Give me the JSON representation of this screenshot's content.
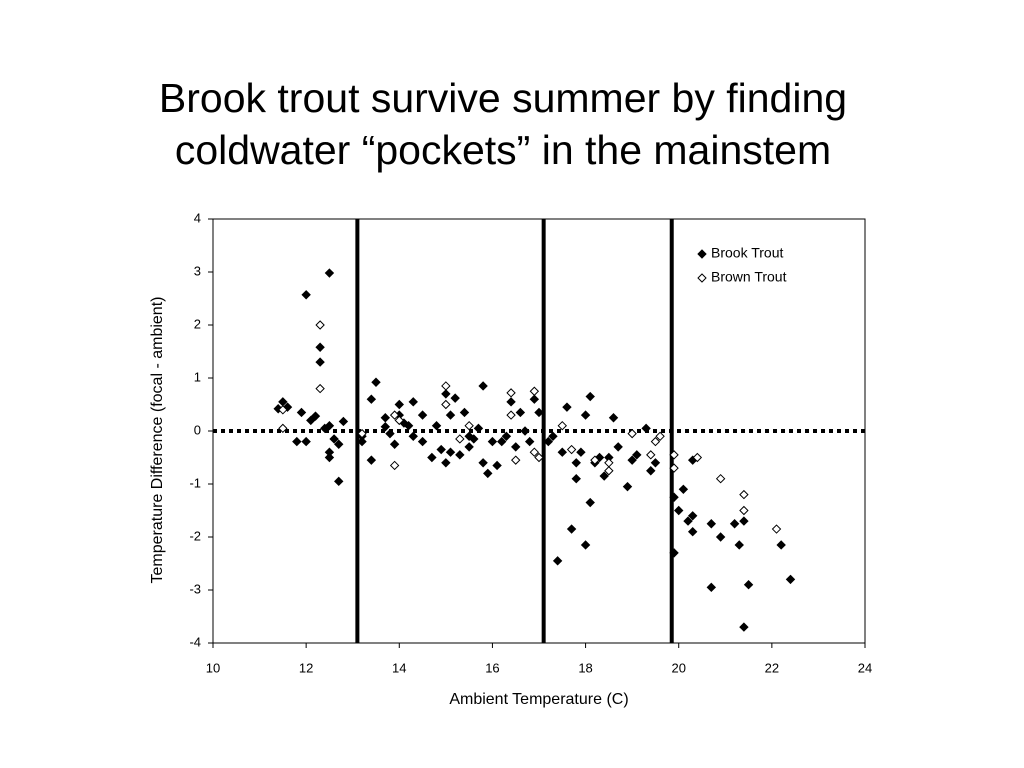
{
  "chart_data": {
    "type": "scatter",
    "title": [
      "Brook trout survive summer by finding",
      "coldwater “pockets” in the mainstem"
    ],
    "x_label": "Ambient Temperature (C)",
    "y_label": "Temperature Difference (focal - ambient)",
    "xlim": [
      10,
      24
    ],
    "xticks": [
      10,
      12,
      14,
      16,
      18,
      20,
      22,
      24
    ],
    "ylim": [
      -4,
      4
    ],
    "yticks": [
      -4,
      -3,
      -2,
      -1,
      0,
      1,
      2,
      3,
      4
    ],
    "vlines": [
      13.1,
      17.1,
      19.85
    ],
    "hline": 0,
    "legend": "upper right",
    "series": [
      {
        "name": "Brook Trout",
        "color": "#000000",
        "filled": true,
        "x": [
          11.4,
          11.5,
          11.6,
          11.8,
          11.9,
          12.0,
          12.0,
          12.1,
          12.2,
          12.3,
          12.3,
          12.4,
          12.5,
          12.5,
          12.5,
          12.5,
          12.6,
          12.7,
          12.7,
          12.8,
          13.2,
          13.2,
          13.4,
          13.4,
          13.5,
          13.7,
          13.7,
          13.8,
          13.9,
          14.0,
          14.0,
          14.1,
          14.2,
          14.3,
          14.3,
          14.5,
          14.5,
          14.7,
          14.8,
          14.9,
          15.0,
          15.0,
          15.1,
          15.1,
          15.2,
          15.3,
          15.4,
          15.5,
          15.5,
          15.6,
          15.7,
          15.8,
          15.8,
          15.9,
          16.0,
          16.1,
          16.2,
          16.3,
          16.4,
          16.5,
          16.6,
          16.7,
          16.8,
          16.9,
          17.0,
          17.2,
          17.3,
          17.4,
          17.5,
          17.6,
          17.7,
          17.8,
          17.8,
          17.9,
          18.0,
          18.0,
          18.1,
          18.1,
          18.2,
          18.3,
          18.4,
          18.5,
          18.6,
          18.7,
          18.9,
          19.0,
          19.1,
          19.3,
          19.4,
          19.5,
          19.9,
          19.9,
          20.0,
          20.1,
          20.2,
          20.3,
          20.3,
          20.3,
          20.7,
          20.7,
          20.9,
          21.2,
          21.3,
          21.4,
          21.4,
          21.5,
          22.2,
          22.4
        ],
        "values": [
          0.42,
          0.55,
          0.45,
          -0.2,
          0.35,
          2.57,
          -0.2,
          0.2,
          0.28,
          1.3,
          1.58,
          0.05,
          2.98,
          -0.4,
          -0.5,
          0.1,
          -0.15,
          -0.95,
          -0.25,
          0.18,
          -0.1,
          -0.2,
          0.6,
          -0.55,
          0.92,
          0.25,
          0.08,
          -0.05,
          -0.25,
          0.5,
          0.3,
          0.15,
          0.1,
          -0.1,
          0.55,
          0.3,
          -0.2,
          -0.5,
          0.1,
          -0.35,
          0.7,
          -0.6,
          -0.4,
          0.3,
          0.62,
          -0.45,
          0.35,
          -0.1,
          -0.3,
          -0.15,
          0.05,
          0.85,
          -0.6,
          -0.8,
          -0.2,
          -0.65,
          -0.2,
          -0.1,
          0.55,
          -0.3,
          0.35,
          0.0,
          -0.2,
          0.6,
          0.35,
          -0.2,
          -0.1,
          -2.45,
          -0.4,
          0.45,
          -1.85,
          -0.9,
          -0.6,
          -0.4,
          -2.15,
          0.3,
          -1.35,
          0.65,
          -0.6,
          -0.5,
          -0.85,
          -0.5,
          0.25,
          -0.3,
          -1.05,
          -0.55,
          -0.45,
          0.05,
          -0.75,
          -0.6,
          -1.25,
          -2.3,
          -1.5,
          -1.1,
          -1.7,
          -1.6,
          -1.9,
          -0.55,
          -1.75,
          -2.95,
          -2.0,
          -1.75,
          -2.15,
          -1.7,
          -3.7,
          -2.9,
          -2.15,
          -2.8
        ]
      },
      {
        "name": "Brown Trout",
        "color": "#000000",
        "filled": false,
        "x": [
          11.5,
          11.5,
          12.3,
          12.3,
          13.2,
          13.9,
          13.9,
          14.0,
          15.0,
          15.0,
          15.3,
          15.5,
          16.4,
          16.4,
          16.5,
          16.9,
          16.9,
          17.0,
          17.5,
          17.7,
          18.2,
          18.5,
          18.5,
          19.0,
          19.4,
          19.5,
          19.6,
          19.9,
          19.9,
          20.4,
          20.9,
          21.4,
          21.4,
          22.1
        ],
        "values": [
          0.4,
          0.05,
          2.0,
          0.8,
          -0.05,
          -0.65,
          0.3,
          0.2,
          0.85,
          0.5,
          -0.15,
          0.1,
          0.72,
          0.3,
          -0.55,
          0.75,
          -0.4,
          -0.5,
          0.1,
          -0.35,
          -0.55,
          -0.6,
          -0.75,
          -0.05,
          -0.45,
          -0.2,
          -0.1,
          -0.45,
          -0.7,
          -0.5,
          -0.9,
          -1.2,
          -1.5,
          -1.85
        ]
      }
    ]
  }
}
